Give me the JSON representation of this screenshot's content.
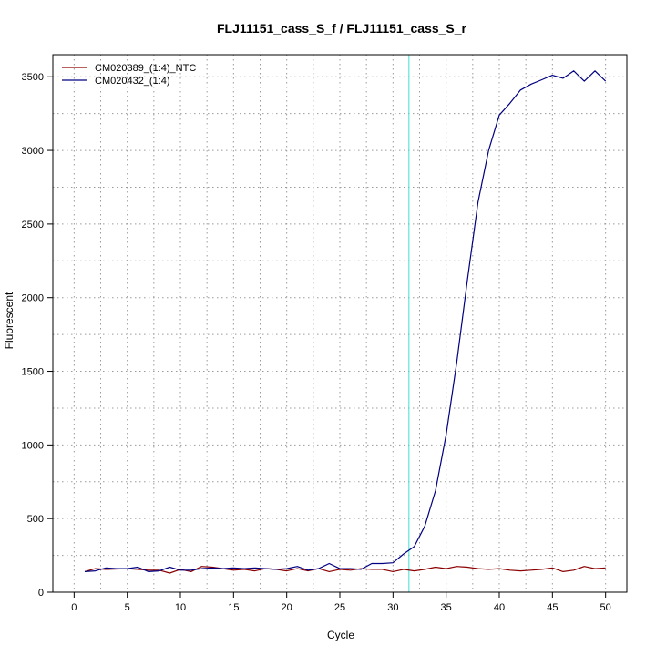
{
  "chart_data": {
    "type": "line",
    "title": "FLJ11151_cass_S_f / FLJ11151_cass_S_r",
    "xlabel": "Cycle",
    "ylabel": "Fluorescent",
    "xlim": [
      -2,
      52
    ],
    "ylim": [
      0,
      3650
    ],
    "x_ticks": [
      0,
      5,
      10,
      15,
      20,
      25,
      30,
      35,
      40,
      45,
      50
    ],
    "y_ticks": [
      0,
      500,
      1000,
      1500,
      2000,
      2500,
      3000,
      3500
    ],
    "grid": true,
    "legend_position": "top-left",
    "threshold_cycle": 31.5,
    "threshold_color": "#40e0d0",
    "baseline_color": "#8b0000",
    "x": [
      1,
      2,
      3,
      4,
      5,
      6,
      7,
      8,
      9,
      10,
      11,
      12,
      13,
      14,
      15,
      16,
      17,
      18,
      19,
      20,
      21,
      22,
      23,
      24,
      25,
      26,
      27,
      28,
      29,
      30,
      31,
      32,
      33,
      34,
      35,
      36,
      37,
      38,
      39,
      40,
      41,
      42,
      43,
      44,
      45,
      46,
      47,
      48,
      49,
      50
    ],
    "series": [
      {
        "name": "CM020389_(1:4)_NTC",
        "color": "#8b0000",
        "values": [
          140,
          160,
          155,
          158,
          160,
          155,
          150,
          150,
          130,
          155,
          140,
          175,
          170,
          160,
          150,
          155,
          145,
          160,
          155,
          145,
          160,
          145,
          160,
          140,
          155,
          150,
          160,
          155,
          155,
          140,
          155,
          145,
          155,
          170,
          160,
          175,
          170,
          160,
          155,
          160,
          150,
          145,
          150,
          155,
          165,
          140,
          150,
          175,
          160,
          165
        ]
      },
      {
        "name": "CM020432_(1:4)",
        "color": "#000080",
        "values": [
          140,
          145,
          165,
          160,
          160,
          170,
          140,
          145,
          170,
          150,
          150,
          160,
          165,
          160,
          165,
          160,
          165,
          160,
          155,
          160,
          175,
          150,
          160,
          195,
          160,
          160,
          155,
          195,
          195,
          200,
          260,
          310,
          450,
          690,
          1070,
          1560,
          2120,
          2650,
          3000,
          3240,
          3320,
          3410,
          3450,
          3480,
          3510,
          3490,
          3540,
          3470,
          3540,
          3470
        ]
      }
    ]
  }
}
